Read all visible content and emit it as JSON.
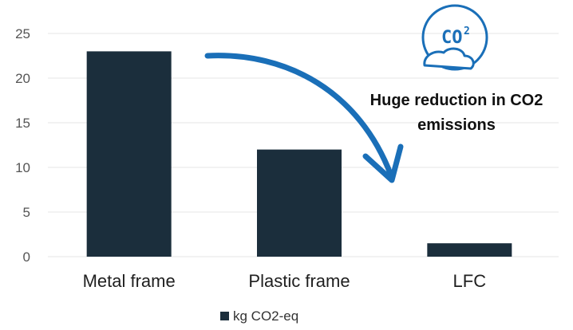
{
  "chart_data": {
    "type": "bar",
    "categories": [
      "Metal frame",
      "Plastic frame",
      "LFC"
    ],
    "series": [
      {
        "name": "kg CO2-eq",
        "values": [
          23,
          12,
          1.5
        ]
      }
    ],
    "ylim": [
      0,
      25
    ],
    "yticks": [
      0,
      5,
      10,
      15,
      20,
      25
    ],
    "grid": true,
    "legend": "bottom",
    "colors": {
      "bar": "#1b2e3c",
      "accent": "#1a6fb8",
      "grid": "#e6e6e6"
    },
    "annotation": {
      "lines": [
        "Huge reduction in CO2",
        "emissions"
      ]
    },
    "icon": {
      "name": "co2-cloud-icon",
      "text": "CO",
      "superscript": "2"
    }
  }
}
